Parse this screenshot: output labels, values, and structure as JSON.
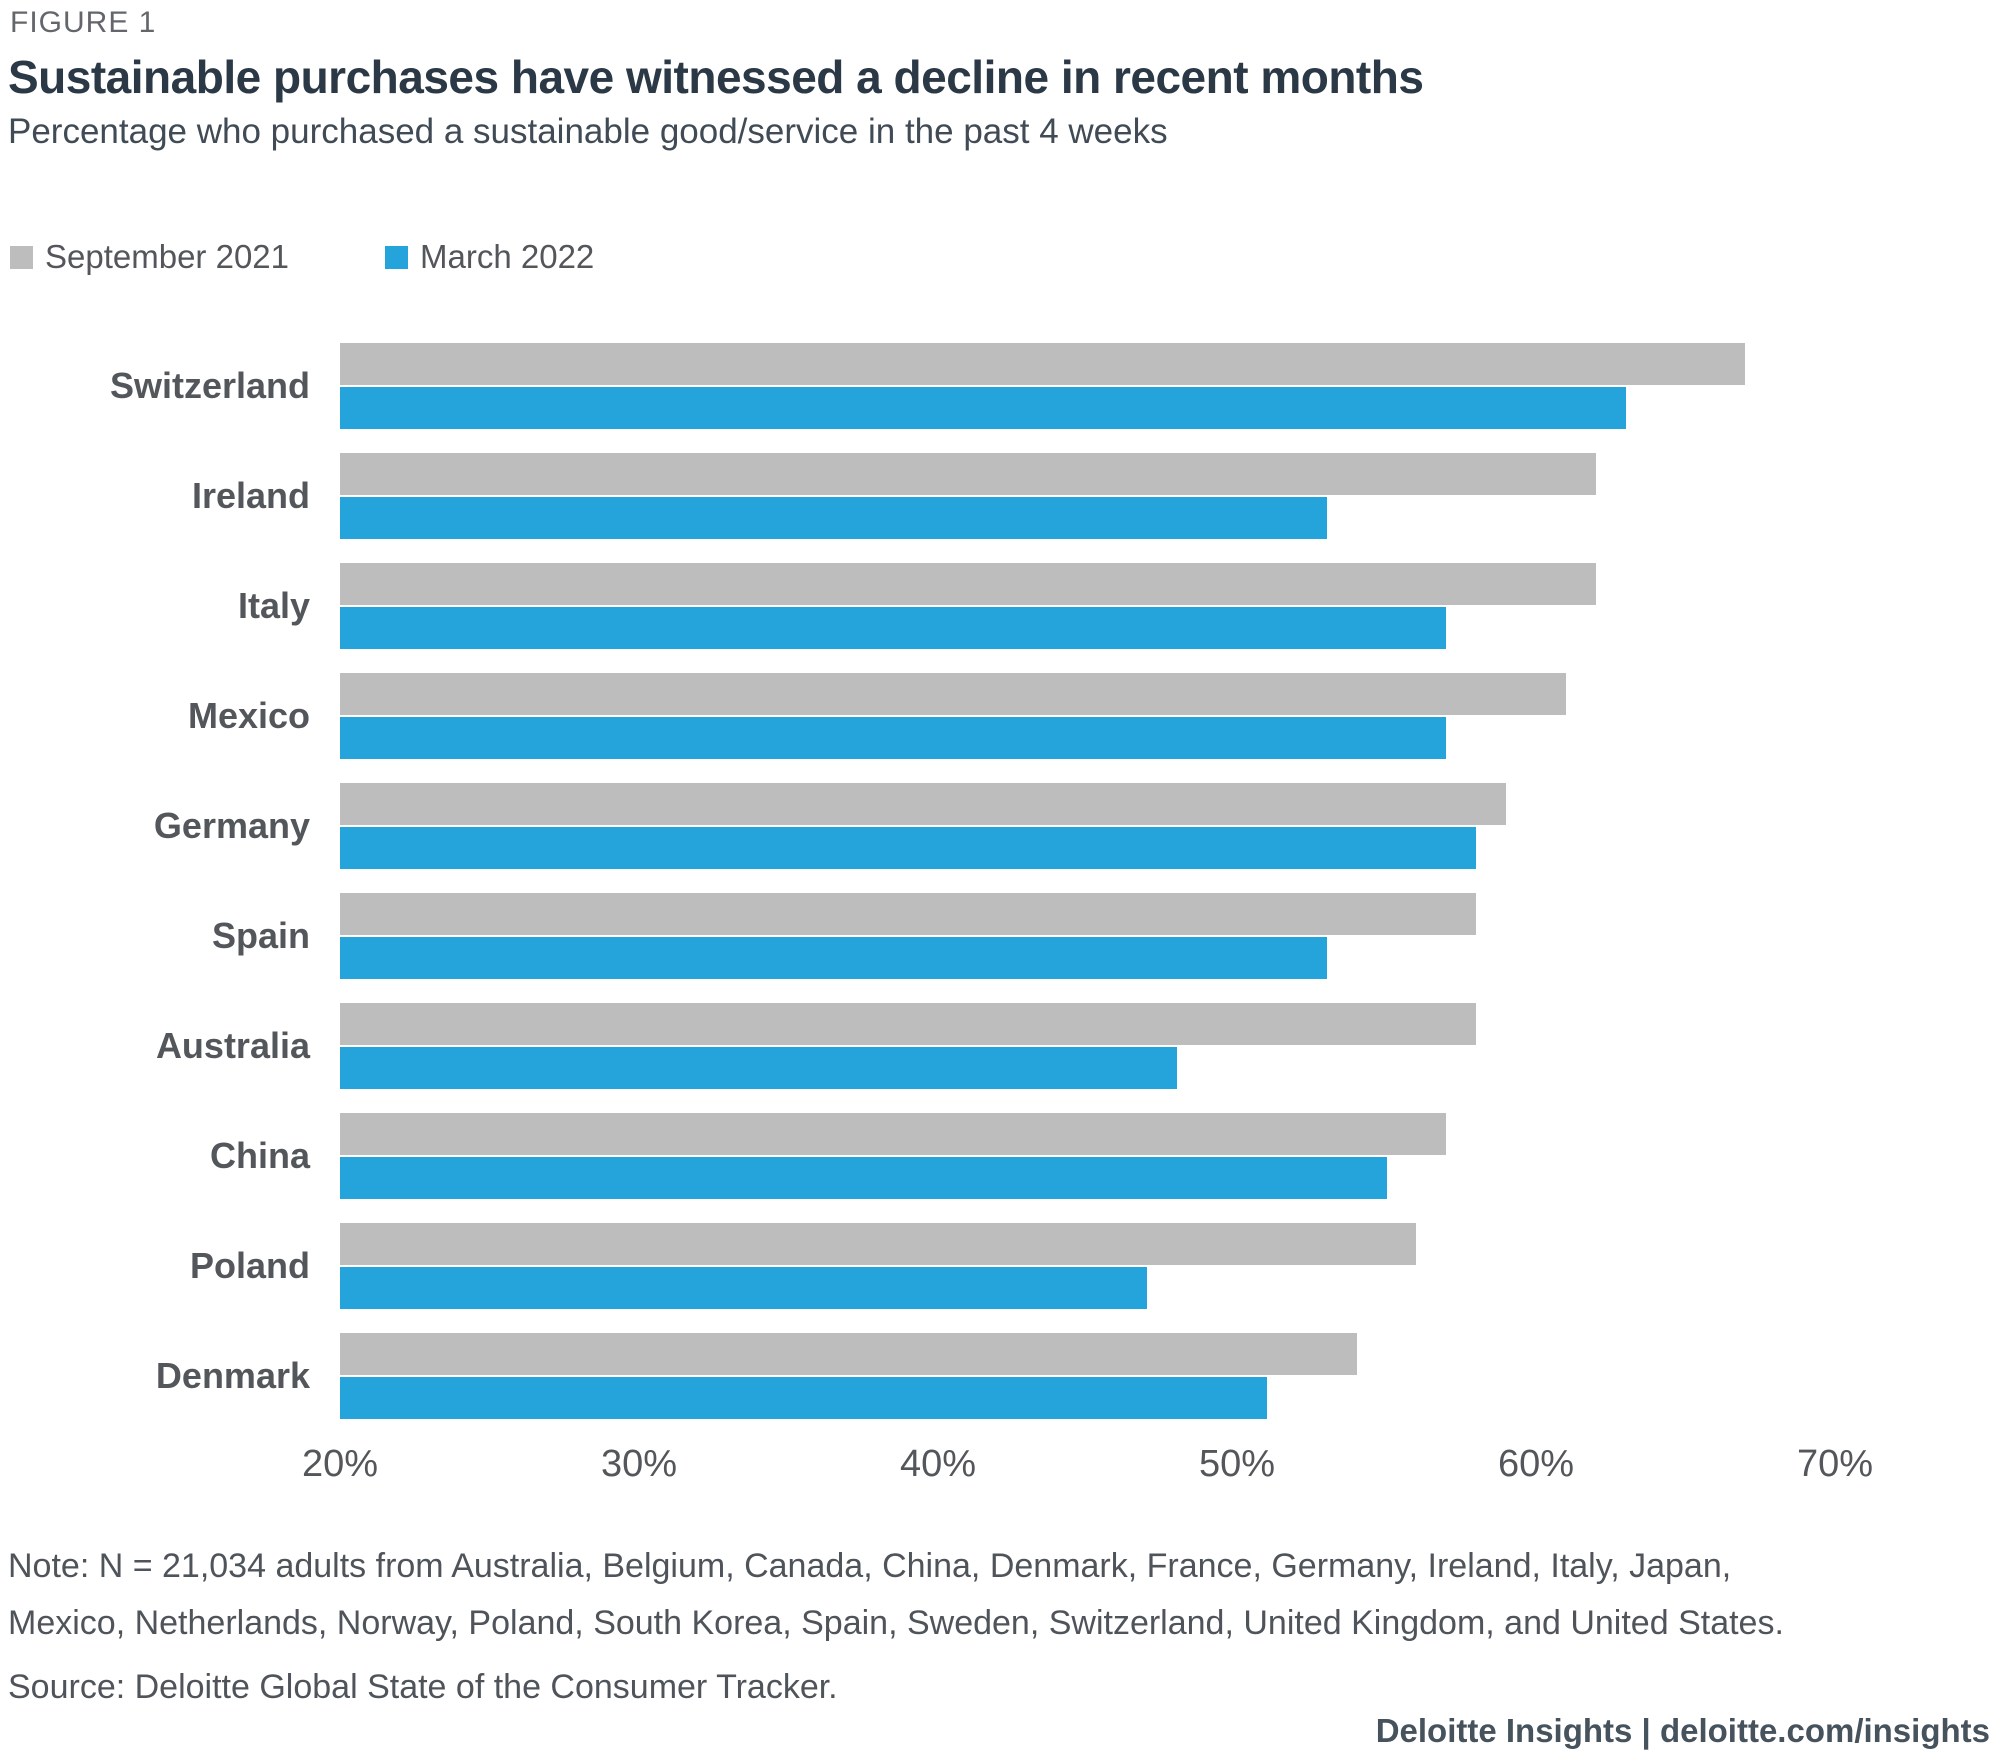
{
  "figure_label": "FIGURE 1",
  "title": "Sustainable purchases have witnessed a decline in recent months",
  "subtitle": "Percentage who purchased a sustainable good/service in the past 4 weeks",
  "colors": {
    "september_2021": "#BDBDBD",
    "march_2022": "#25A3DB"
  },
  "legend": {
    "items": [
      {
        "label": "September 2021",
        "color": "#BDBDBD"
      },
      {
        "label": "March 2022",
        "color": "#25A3DB"
      }
    ]
  },
  "chart_data": {
    "type": "bar",
    "orientation": "horizontal",
    "title": "Sustainable purchases have witnessed a decline in recent months",
    "subtitle": "Percentage who purchased a sustainable good/service in the past 4 weeks",
    "categories": [
      "Switzerland",
      "Ireland",
      "Italy",
      "Mexico",
      "Germany",
      "Spain",
      "Australia",
      "China",
      "Poland",
      "Denmark"
    ],
    "series": [
      {
        "name": "September 2021",
        "color": "#BDBDBD",
        "values": [
          67,
          62,
          62,
          61,
          59,
          58,
          58,
          57,
          56,
          54
        ]
      },
      {
        "name": "March 2022",
        "color": "#25A3DB",
        "values": [
          63,
          53,
          57,
          57,
          58,
          53,
          48,
          55,
          47,
          51
        ]
      }
    ],
    "value_unit": "%",
    "xlim": [
      20,
      70
    ],
    "x_ticks": [
      20,
      30,
      40,
      50,
      60,
      70
    ],
    "x_tick_labels": [
      "20%",
      "30%",
      "40%",
      "50%",
      "60%",
      "70%"
    ],
    "grid": false,
    "legend_position": "top"
  },
  "note_line1": "Note: N = 21,034 adults from Australia, Belgium, Canada, China, Denmark, France, Germany, Ireland, Italy, Japan,",
  "note_line2": "Mexico, Netherlands, Norway, Poland, South Korea, Spain, Sweden, Switzerland, United Kingdom, and United States.",
  "source": "Source: Deloitte Global State of the Consumer Tracker.",
  "footer": "Deloitte Insights | deloitte.com/insights"
}
